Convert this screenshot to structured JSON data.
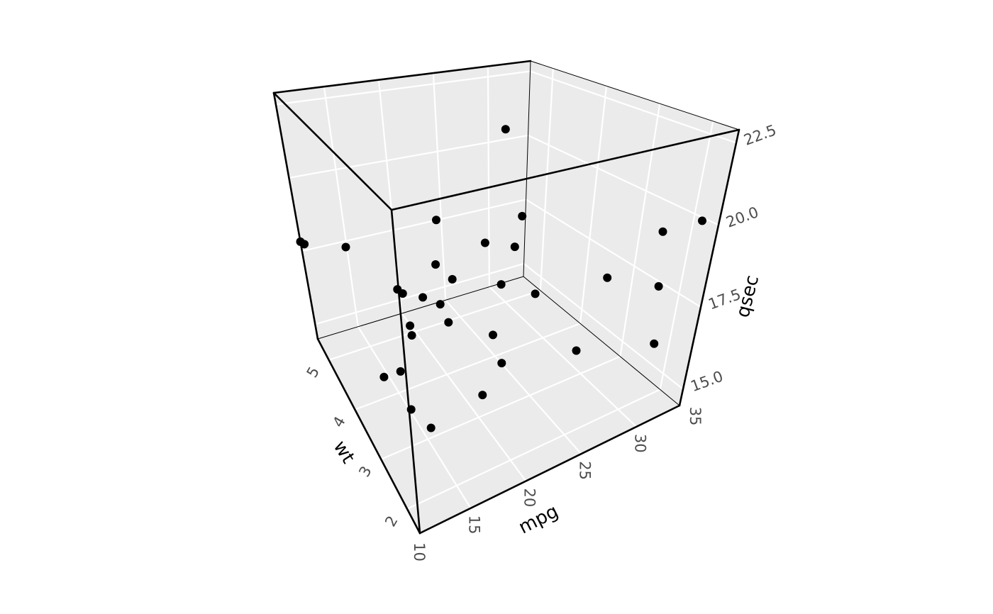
{
  "chart_data": {
    "type": "scatter",
    "projection": "3d",
    "title": "",
    "xlabel": "mpg",
    "ylabel": "wt",
    "zlabel": "qsec",
    "xlim": [
      10.4,
      33.9
    ],
    "ylim": [
      1.513,
      5.424
    ],
    "zlim": [
      14.5,
      22.9
    ],
    "xticks": [
      "10",
      "15",
      "20",
      "25",
      "30",
      "35"
    ],
    "yticks": [
      "2",
      "3",
      "4",
      "5"
    ],
    "zticks": [
      "15.0",
      "17.5",
      "20.0",
      "22.5"
    ],
    "grid": true,
    "panel_color": "#ebebeb",
    "grid_color": "#ffffff",
    "point_color": "#000000",
    "points": [
      {
        "x": 21.0,
        "y": 2.62,
        "z": 16.46
      },
      {
        "x": 21.0,
        "y": 2.875,
        "z": 17.02
      },
      {
        "x": 22.8,
        "y": 2.32,
        "z": 18.61
      },
      {
        "x": 21.4,
        "y": 3.215,
        "z": 19.44
      },
      {
        "x": 18.7,
        "y": 3.44,
        "z": 17.02
      },
      {
        "x": 18.1,
        "y": 3.46,
        "z": 20.22
      },
      {
        "x": 14.3,
        "y": 3.57,
        "z": 15.84
      },
      {
        "x": 24.4,
        "y": 3.19,
        "z": 20.0
      },
      {
        "x": 22.8,
        "y": 3.15,
        "z": 22.9
      },
      {
        "x": 19.2,
        "y": 3.44,
        "z": 18.3
      },
      {
        "x": 17.8,
        "y": 3.44,
        "z": 18.9
      },
      {
        "x": 16.4,
        "y": 4.07,
        "z": 17.4
      },
      {
        "x": 17.3,
        "y": 3.73,
        "z": 17.6
      },
      {
        "x": 15.2,
        "y": 3.78,
        "z": 18.0
      },
      {
        "x": 10.4,
        "y": 5.25,
        "z": 17.98
      },
      {
        "x": 10.4,
        "y": 5.424,
        "z": 17.82
      },
      {
        "x": 14.7,
        "y": 5.345,
        "z": 17.42
      },
      {
        "x": 32.4,
        "y": 2.2,
        "z": 19.47
      },
      {
        "x": 30.4,
        "y": 1.615,
        "z": 18.52
      },
      {
        "x": 33.9,
        "y": 1.835,
        "z": 19.9
      },
      {
        "x": 21.5,
        "y": 2.465,
        "z": 20.01
      },
      {
        "x": 15.5,
        "y": 3.52,
        "z": 16.87
      },
      {
        "x": 15.2,
        "y": 3.435,
        "z": 17.3
      },
      {
        "x": 13.3,
        "y": 3.84,
        "z": 15.41
      },
      {
        "x": 19.2,
        "y": 3.845,
        "z": 17.05
      },
      {
        "x": 27.3,
        "y": 1.935,
        "z": 18.9
      },
      {
        "x": 26.0,
        "y": 2.14,
        "z": 16.7
      },
      {
        "x": 30.4,
        "y": 1.513,
        "z": 16.9
      },
      {
        "x": 15.8,
        "y": 3.17,
        "z": 14.5
      },
      {
        "x": 19.7,
        "y": 2.77,
        "z": 15.5
      },
      {
        "x": 15.0,
        "y": 3.57,
        "z": 14.6
      },
      {
        "x": 21.4,
        "y": 2.78,
        "z": 18.6
      }
    ]
  }
}
